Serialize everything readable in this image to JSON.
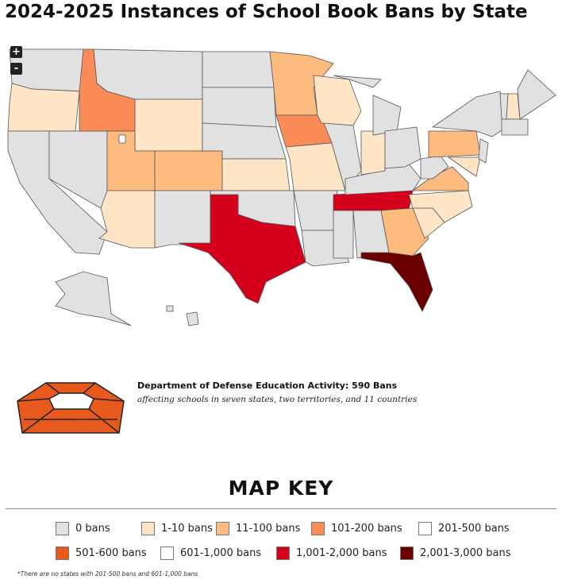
{
  "header": {
    "title": "2024-2025 Instances of School Book Bans by State"
  },
  "controls": {
    "zoom_in": "+",
    "zoom_out": "-"
  },
  "dodea": {
    "title": "Department of Defense Education Activity: 590 Bans",
    "subtitle": "affecting schools in seven states, two territories, and 11 countries"
  },
  "map_key": {
    "title": "MAP KEY",
    "items": [
      {
        "label": "0 bans",
        "color": "#e1e1e1"
      },
      {
        "label": "1-10 bans",
        "color": "#fde5c6"
      },
      {
        "label": "11-100 bans",
        "color": "#fdbb80"
      },
      {
        "label": "101-200 bans",
        "color": "#fb8c58"
      },
      {
        "label": "201-500 bans",
        "color": "#ffffff"
      },
      {
        "label": "501-600 bans",
        "color": "#e8591c"
      },
      {
        "label": "601-1,000 bans",
        "color": "#ffffff"
      },
      {
        "label": "1,001-2,000 bans",
        "color": "#d5001c"
      },
      {
        "label": "2,001-3,000 bans",
        "color": "#6a0000"
      }
    ]
  },
  "footnote": "*There are no states with 201-500 bans and 601-1,000 bans"
}
